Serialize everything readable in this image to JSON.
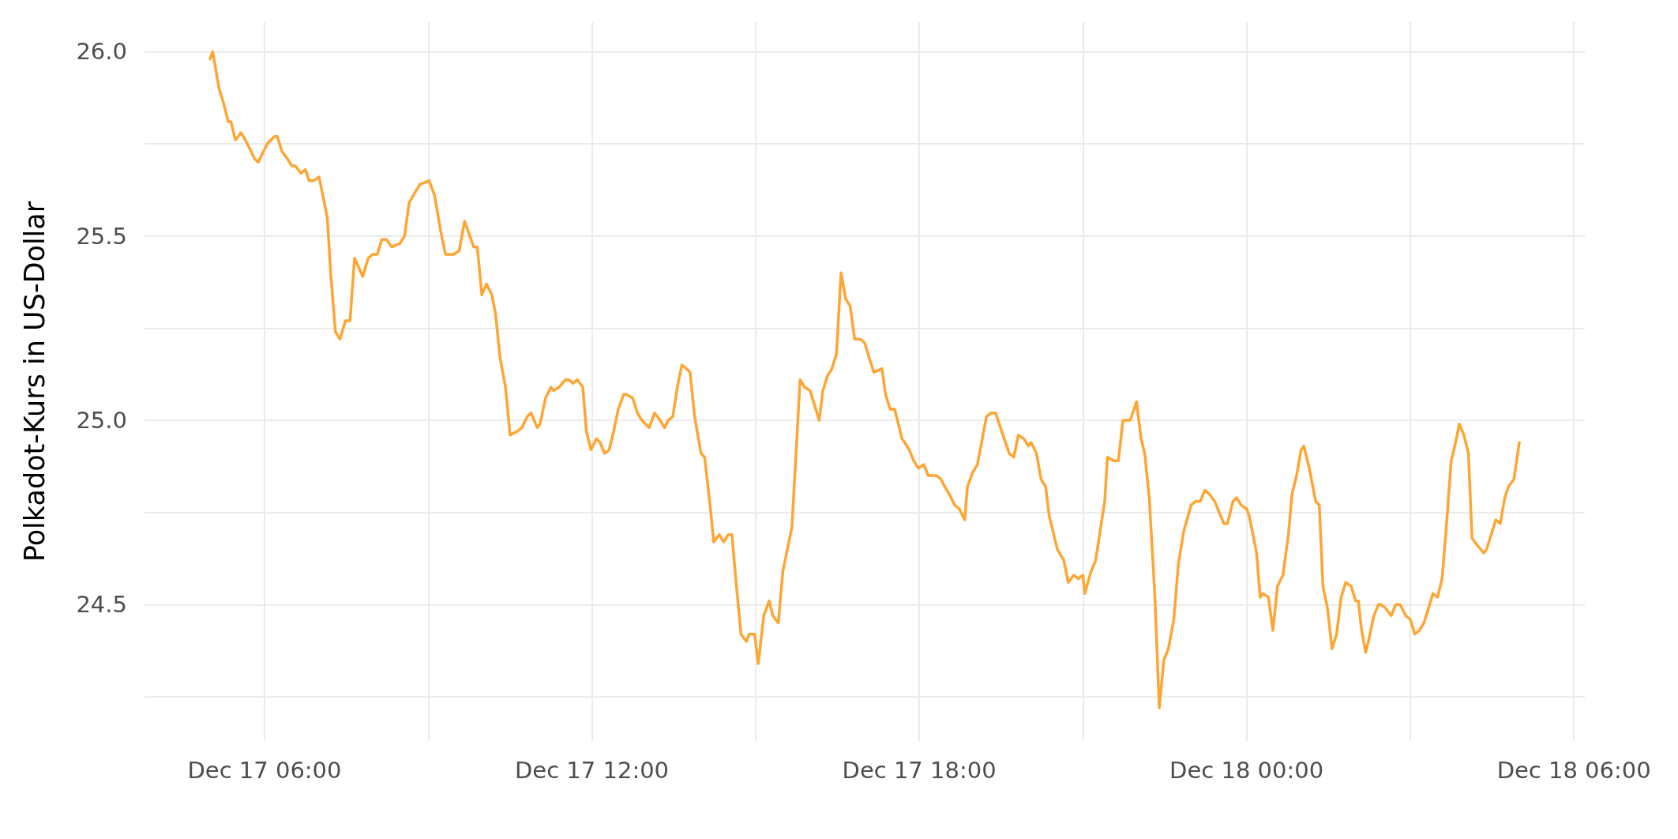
{
  "chart_data": {
    "type": "line",
    "ylabel": "Polkadot-Kurs in US-Dollar",
    "xlim": [
      "--12-17T03:48",
      "--12-18T06:12"
    ],
    "xticks": [
      {
        "value": "--12-17T06:00",
        "label": "Dec 17 06:00"
      },
      {
        "value": "--12-17T09:00",
        "label": null
      },
      {
        "value": "--12-17T12:00",
        "label": "Dec 17 12:00"
      },
      {
        "value": "--12-17T15:00",
        "label": null
      },
      {
        "value": "--12-17T18:00",
        "label": "Dec 17 18:00"
      },
      {
        "value": "--12-17T21:00",
        "label": null
      },
      {
        "value": "--12-18T00:00",
        "label": "Dec 18 00:00"
      },
      {
        "value": "--12-18T03:00",
        "label": null
      },
      {
        "value": "--12-18T06:00",
        "label": "Dec 18 06:00"
      }
    ],
    "ylim": [
      24.13,
      26.08
    ],
    "yticks": [
      {
        "value": 24.25,
        "label": null
      },
      {
        "value": 24.5,
        "label": "24.5"
      },
      {
        "value": 24.75,
        "label": null
      },
      {
        "value": 25,
        "label": "25.0"
      },
      {
        "value": 25.25,
        "label": null
      },
      {
        "value": 25.5,
        "label": "25.5"
      },
      {
        "value": 25.75,
        "label": null
      },
      {
        "value": 26,
        "label": "26.0"
      }
    ],
    "grid": true,
    "marker": "none",
    "line_style": "solid",
    "series": [
      {
        "color": "#ffa533",
        "x": [
          "--12-17T05:00",
          "--12-17T05:03",
          "--12-17T05:10",
          "--12-17T05:15",
          "--12-17T05:20",
          "--12-17T05:23",
          "--12-17T05:28",
          "--12-17T05:34",
          "--12-17T05:39",
          "--12-17T05:49",
          "--12-17T05:53",
          "--12-17T06:03",
          "--12-17T06:11",
          "--12-17T06:14",
          "--12-17T06:19",
          "--12-17T06:25",
          "--12-17T06:30",
          "--12-17T06:34",
          "--12-17T06:40",
          "--12-17T06:45",
          "--12-17T06:49",
          "--12-17T06:54",
          "--12-17T07:00",
          "--12-17T07:09",
          "--12-17T07:13",
          "--12-17T07:18",
          "--12-17T07:23",
          "--12-17T07:29",
          "--12-17T07:34",
          "--12-17T07:39",
          "--12-17T07:48",
          "--12-17T07:54",
          "--12-17T07:59",
          "--12-17T08:04",
          "--12-17T08:09",
          "--12-17T08:14",
          "--12-17T08:20",
          "--12-17T08:29",
          "--12-17T08:34",
          "--12-17T08:39",
          "--12-17T08:46",
          "--12-17T08:51",
          "--12-17T09:01",
          "--12-17T09:07",
          "--12-17T09:14",
          "--12-17T09:19",
          "--12-17T09:28",
          "--12-17T09:34",
          "--12-17T09:40",
          "--12-17T09:50",
          "--12-17T09:54",
          "--12-17T09:59",
          "--12-17T10:04",
          "--12-17T10:10",
          "--12-17T10:14",
          "--12-17T10:19",
          "--12-17T10:25",
          "--12-17T10:30",
          "--12-17T10:38",
          "--12-17T10:43",
          "--12-17T10:49",
          "--12-17T10:53",
          "--12-17T11:00",
          "--12-17T11:03",
          "--12-17T11:09",
          "--12-17T11:15",
          "--12-17T11:18",
          "--12-17T11:24",
          "--12-17T11:31",
          "--12-17T11:35",
          "--12-17T11:39",
          "--12-17T11:44",
          "--12-17T11:50",
          "--12-17T11:54",
          "--12-17T11:59",
          "--12-17T12:05",
          "--12-17T12:09",
          "--12-17T12:14",
          "--12-17T12:19",
          "--12-17T12:24",
          "--12-17T12:29",
          "--12-17T12:35",
          "--12-17T12:38",
          "--12-17T12:45",
          "--12-17T12:50",
          "--12-17T12:55",
          "--12-17T12:59",
          "--12-17T13:03",
          "--12-17T13:09",
          "--12-17T13:15",
          "--12-17T13:20",
          "--12-17T13:24",
          "--12-17T13:29",
          "--12-17T13:34",
          "--12-17T13:39",
          "--12-17T13:44",
          "--12-17T13:48",
          "--12-17T13:53",
          "--12-17T14:00",
          "--12-17T14:04",
          "--12-17T14:10",
          "--12-17T14:14",
          "--12-17T14:20",
          "--12-17T14:25",
          "--12-17T14:30",
          "--12-17T14:34",
          "--12-17T14:39",
          "--12-17T14:44",
          "--12-17T14:50",
          "--12-17T14:53",
          "--12-17T14:59",
          "--12-17T15:03",
          "--12-17T15:09",
          "--12-17T15:15",
          "--12-17T15:19",
          "--12-17T15:25",
          "--12-17T15:30",
          "--12-17T15:35",
          "--12-17T15:40",
          "--12-17T15:49",
          "--12-17T15:54",
          "--12-17T16:00",
          "--12-17T16:05",
          "--12-17T16:10",
          "--12-17T16:14",
          "--12-17T16:19",
          "--12-17T16:24",
          "--12-17T16:29",
          "--12-17T16:34",
          "--12-17T16:39",
          "--12-17T16:44",
          "--12-17T16:49",
          "--12-17T16:55",
          "--12-17T17:00",
          "--12-17T17:05",
          "--12-17T17:10",
          "--12-17T17:19",
          "--12-17T17:23",
          "--12-17T17:28",
          "--12-17T17:33",
          "--12-17T17:37",
          "--12-17T17:41",
          "--12-17T17:44",
          "--12-17T17:49",
          "--12-17T17:54",
          "--12-17T17:59",
          "--12-17T18:05",
          "--12-17T18:10",
          "--12-17T18:14",
          "--12-17T18:19",
          "--12-17T18:24",
          "--12-17T18:28",
          "--12-17T18:33",
          "--12-17T18:39",
          "--12-17T18:44",
          "--12-17T18:50",
          "--12-17T18:53",
          "--12-17T18:59",
          "--12-17T19:04",
          "--12-17T19:14",
          "--12-17T19:19",
          "--12-17T19:24",
          "--12-17T19:32",
          "--12-17T19:39",
          "--12-17T19:44",
          "--12-17T19:49",
          "--12-17T19:55",
          "--12-17T20:00",
          "--12-17T20:03",
          "--12-17T20:09",
          "--12-17T20:14",
          "--12-17T20:19",
          "--12-17T20:23",
          "--12-17T20:29",
          "--12-17T20:32",
          "--12-17T20:39",
          "--12-17T20:44",
          "--12-17T20:50",
          "--12-17T20:55",
          "--12-17T21:00",
          "--12-17T21:02",
          "--12-17T21:09",
          "--12-17T21:14",
          "--12-17T21:19",
          "--12-17T21:24",
          "--12-17T21:27",
          "--12-17T21:34",
          "--12-17T21:39",
          "--12-17T21:44",
          "--12-17T21:52",
          "--12-17T21:59",
          "--12-17T22:04",
          "--12-17T22:08",
          "--12-17T22:13",
          "--12-17T22:19",
          "--12-17T22:24",
          "--12-17T22:29",
          "--12-17T22:34",
          "--12-17T22:40",
          "--12-17T22:45",
          "--12-17T22:51",
          "--12-17T22:59",
          "--12-17T23:04",
          "--12-17T23:09",
          "--12-17T23:14",
          "--12-17T23:19",
          "--12-17T23:25",
          "--12-17T23:30",
          "--12-17T23:35",
          "--12-17T23:39",
          "--12-17T23:45",
          "--12-17T23:49",
          "--12-17T23:54",
          "--12-18T00:00",
          "--12-18T00:03",
          "--12-18T00:11",
          "--12-18T00:15",
          "--12-18T00:18",
          "--12-18T00:24",
          "--12-18T00:29",
          "--12-18T00:34",
          "--12-18T00:40",
          "--12-18T00:46",
          "--12-18T00:50",
          "--12-18T00:55",
          "--12-18T01:00",
          "--12-18T01:03",
          "--12-18T01:09",
          "--12-18T01:16",
          "--12-18T01:20",
          "--12-18T01:24",
          "--12-18T01:29",
          "--12-18T01:34",
          "--12-18T01:39",
          "--12-18T01:44",
          "--12-18T01:49",
          "--12-18T01:55",
          "--12-18T02:00",
          "--12-18T02:03",
          "--12-18T02:06",
          "--12-18T02:11",
          "--12-18T02:14",
          "--12-18T02:20",
          "--12-18T02:25",
          "--12-18T02:28",
          "--12-18T02:33",
          "--12-18T02:39",
          "--12-18T02:44",
          "--12-18T02:49",
          "--12-18T02:55",
          "--12-18T03:00",
          "--12-18T03:05",
          "--12-18T03:10",
          "--12-18T03:15",
          "--12-18T03:20",
          "--12-18T03:25",
          "--12-18T03:30",
          "--12-18T03:35",
          "--12-18T03:40",
          "--12-18T03:45",
          "--12-18T03:49",
          "--12-18T03:54",
          "--12-18T03:59",
          "--12-18T04:04",
          "--12-18T04:08",
          "--12-18T04:14",
          "--12-18T04:21",
          "--12-18T04:24",
          "--12-18T04:29",
          "--12-18T04:34",
          "--12-18T04:39",
          "--12-18T04:44",
          "--12-18T04:48",
          "--12-18T04:54",
          "--12-18T05:00"
        ],
        "values": [
          25.98,
          26.0,
          25.9,
          25.86,
          25.81,
          25.81,
          25.76,
          25.78,
          25.76,
          25.71,
          25.7,
          25.75,
          25.77,
          25.77,
          25.73,
          25.71,
          25.69,
          25.69,
          25.67,
          25.68,
          25.65,
          25.65,
          25.66,
          25.55,
          25.39,
          25.24,
          25.22,
          25.27,
          25.27,
          25.44,
          25.39,
          25.44,
          25.45,
          25.45,
          25.49,
          25.49,
          25.47,
          25.48,
          25.5,
          25.59,
          25.62,
          25.64,
          25.65,
          25.61,
          25.51,
          25.45,
          25.45,
          25.46,
          25.54,
          25.47,
          25.47,
          25.34,
          25.37,
          25.34,
          25.29,
          25.17,
          25.09,
          24.96,
          24.97,
          24.98,
          25.01,
          25.02,
          24.98,
          24.99,
          25.06,
          25.09,
          25.08,
          25.09,
          25.11,
          25.11,
          25.1,
          25.11,
          25.09,
          24.97,
          24.92,
          24.95,
          24.94,
          24.91,
          24.92,
          24.97,
          25.03,
          25.07,
          25.07,
          25.06,
          25.02,
          25.0,
          24.99,
          24.98,
          25.02,
          25.0,
          24.98,
          25.0,
          25.01,
          25.09,
          25.15,
          25.14,
          25.13,
          25.01,
          24.91,
          24.9,
          24.77,
          24.67,
          24.69,
          24.67,
          24.69,
          24.69,
          24.55,
          24.42,
          24.4,
          24.42,
          24.42,
          24.34,
          24.47,
          24.51,
          24.47,
          24.45,
          24.59,
          24.65,
          24.71,
          25.11,
          25.09,
          25.08,
          25.04,
          25.0,
          25.08,
          25.12,
          25.14,
          25.18,
          25.4,
          25.33,
          25.31,
          25.22,
          25.22,
          25.21,
          25.17,
          25.13,
          25.14,
          25.07,
          25.03,
          25.03,
          24.99,
          24.95,
          24.94,
          24.92,
          24.89,
          24.87,
          24.88,
          24.85,
          24.85,
          24.85,
          24.84,
          24.82,
          24.8,
          24.77,
          24.76,
          24.73,
          24.82,
          24.86,
          24.88,
          25.01,
          25.02,
          25.02,
          24.96,
          24.91,
          24.9,
          24.96,
          24.95,
          24.93,
          24.94,
          24.91,
          24.84,
          24.82,
          24.74,
          24.68,
          24.65,
          24.62,
          24.56,
          24.58,
          24.57,
          24.58,
          24.53,
          24.59,
          24.62,
          24.7,
          24.78,
          24.9,
          24.89,
          24.89,
          25.0,
          25.0,
          25.05,
          24.95,
          24.91,
          24.79,
          24.53,
          24.22,
          24.35,
          24.38,
          24.46,
          24.61,
          24.7,
          24.77,
          24.78,
          24.78,
          24.81,
          24.8,
          24.78,
          24.75,
          24.72,
          24.72,
          24.78,
          24.79,
          24.77,
          24.76,
          24.74,
          24.64,
          24.52,
          24.53,
          24.52,
          24.43,
          24.55,
          24.58,
          24.69,
          24.8,
          24.85,
          24.92,
          24.93,
          24.87,
          24.78,
          24.77,
          24.55,
          24.49,
          24.38,
          24.42,
          24.52,
          24.56,
          24.55,
          24.51,
          24.51,
          24.44,
          24.37,
          24.4,
          24.47,
          24.5,
          24.5,
          24.49,
          24.47,
          24.5,
          24.5,
          24.47,
          24.46,
          24.42,
          24.43,
          24.45,
          24.49,
          24.53,
          24.52,
          24.57,
          24.72,
          24.89,
          24.93,
          24.99,
          24.96,
          24.91,
          24.68,
          24.66,
          24.64,
          24.65,
          24.69,
          24.73,
          24.72,
          24.79,
          24.82,
          24.84,
          24.94
        ]
      }
    ]
  }
}
